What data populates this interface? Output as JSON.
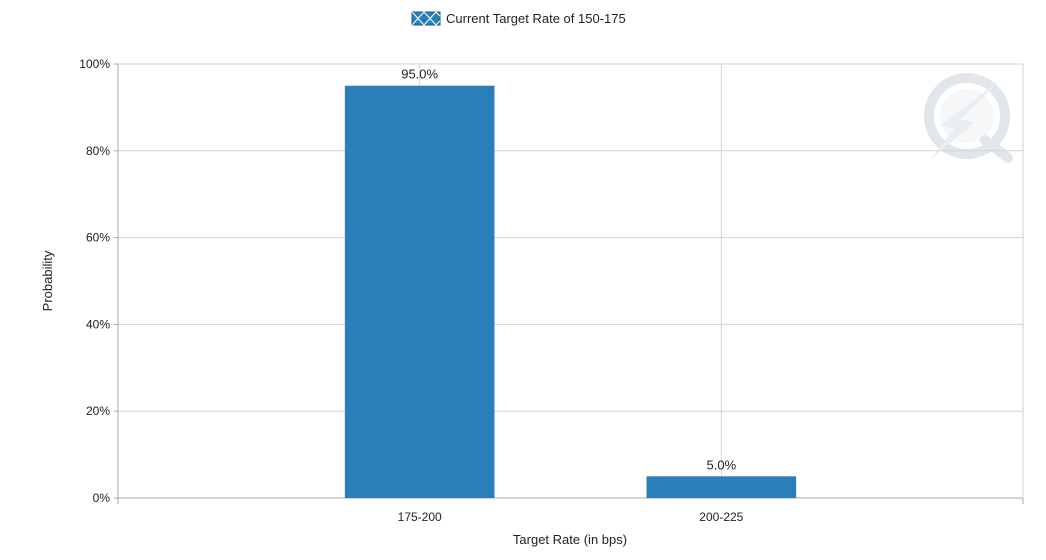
{
  "chart_data": {
    "type": "bar",
    "legend": {
      "label": "Current Target Rate of 150-175",
      "position": "top-center"
    },
    "categories": [
      "175-200",
      "200-225"
    ],
    "series": [
      {
        "name": "Current Target Rate of 150-175",
        "values": [
          95.0,
          5.0
        ],
        "data_labels": [
          "95.0%",
          "5.0%"
        ]
      }
    ],
    "xlabel": "Target Rate (in bps)",
    "ylabel": "Probability",
    "ylim": [
      0,
      100
    ],
    "yticks": [
      0,
      20,
      40,
      60,
      80,
      100
    ],
    "ytick_labels": [
      "0%",
      "20%",
      "40%",
      "60%",
      "80%",
      "100%"
    ],
    "grid": true
  },
  "colors": {
    "bar": "#2a7fb8",
    "grid": "#d3d3d3",
    "axis": "#a8a8a8",
    "watermark": "#c9d3dc"
  },
  "icons": {
    "watermark": "quikstrike-q-logo"
  }
}
